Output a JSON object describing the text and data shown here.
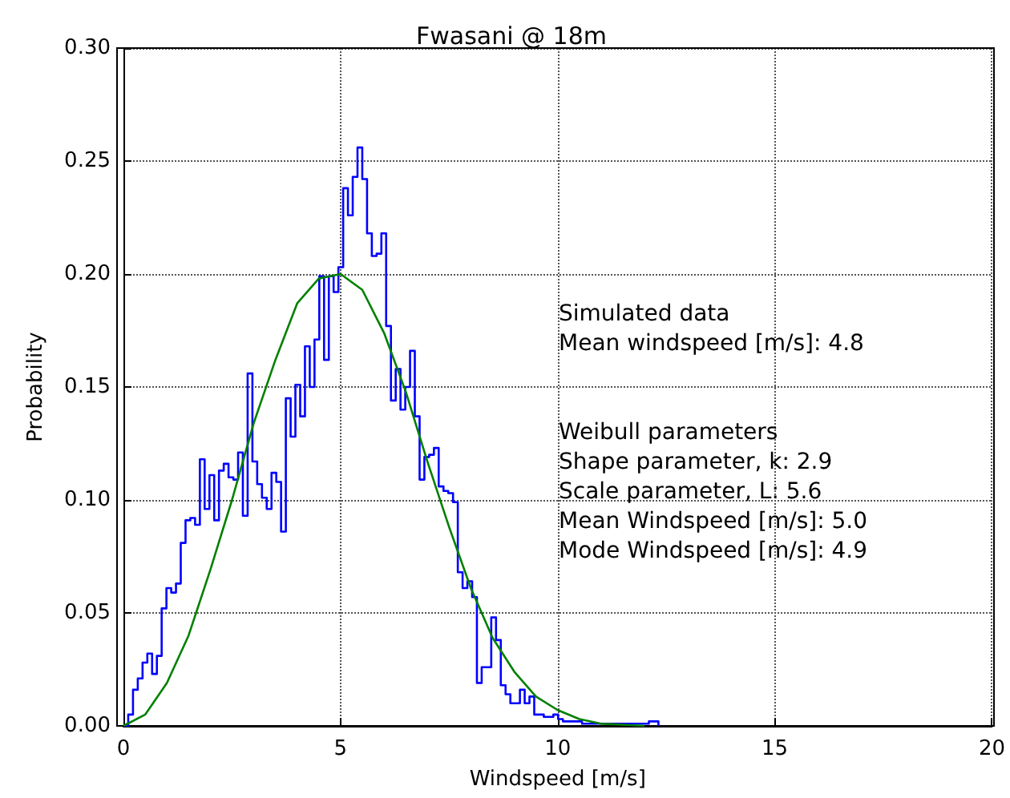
{
  "chart_data": {
    "type": "histogram",
    "title": "Fwasani @ 18m",
    "xlabel": "Windspeed [m/s]",
    "ylabel": "Probability",
    "bins": [
      0,
      0.11,
      0.22,
      0.33,
      0.44,
      0.55,
      0.66,
      0.77,
      0.88,
      0.99,
      1.1,
      1.21,
      1.32,
      1.43,
      1.54,
      1.65,
      1.76,
      1.87,
      1.98,
      2.09,
      2.2,
      2.31,
      2.42,
      2.53,
      2.64,
      2.75,
      2.86,
      2.97,
      3.08,
      3.19,
      3.3,
      3.41,
      3.52,
      3.63,
      3.74,
      3.85,
      3.96,
      4.07,
      4.18,
      4.29,
      4.4,
      4.51,
      4.62,
      4.73,
      4.84,
      4.95,
      5.06,
      5.17,
      5.28,
      5.39,
      5.5,
      5.61,
      5.72,
      5.83,
      5.94,
      6.05,
      6.16,
      6.27,
      6.38,
      6.49,
      6.6,
      6.71,
      6.82,
      6.93,
      7.04,
      7.15,
      7.26,
      7.37,
      7.48,
      7.59,
      7.7,
      7.81,
      7.92,
      8.03,
      8.14,
      8.25,
      8.36,
      8.47,
      8.58,
      8.69,
      8.8,
      8.91,
      9.02,
      9.13,
      9.24,
      9.35,
      9.46,
      9.57,
      9.68,
      9.79,
      9.9,
      10.01,
      10.12,
      10.23,
      10.34,
      10.45,
      10.56,
      10.67,
      10.78,
      10.89,
      11,
      11.11,
      11.22,
      11.33,
      11.44,
      11.55,
      11.66,
      11.77,
      11.88,
      11.99,
      12.1,
      12.21,
      12.32
    ],
    "values": [
      0,
      0.005,
      0.016,
      0.021,
      0.028,
      0.032,
      0.023,
      0.031,
      0.052,
      0.061,
      0.059,
      0.063,
      0.081,
      0.091,
      0.092,
      0.089,
      0.118,
      0.096,
      0.111,
      0.091,
      0.113,
      0.116,
      0.11,
      0.109,
      0.121,
      0.093,
      0.156,
      0.117,
      0.107,
      0.101,
      0.096,
      0.112,
      0.108,
      0.086,
      0.145,
      0.128,
      0.151,
      0.137,
      0.168,
      0.15,
      0.171,
      0.199,
      0.162,
      0.199,
      0.192,
      0.203,
      0.238,
      0.226,
      0.243,
      0.256,
      0.242,
      0.218,
      0.208,
      0.209,
      0.218,
      0.177,
      0.144,
      0.158,
      0.14,
      0.15,
      0.166,
      0.137,
      0.109,
      0.119,
      0.12,
      0.123,
      0.106,
      0.104,
      0.103,
      0.099,
      0.068,
      0.061,
      0.064,
      0.057,
      0.019,
      0.026,
      0.026,
      0.048,
      0.038,
      0.018,
      0.014,
      0.01,
      0.01,
      0.016,
      0.01,
      0.013,
      0.005,
      0.005,
      0.004,
      0.004,
      0.005,
      0.003,
      0.002,
      0.002,
      0.002,
      0.002,
      0.001,
      0.001,
      0.001,
      0.001,
      0.001,
      0.001,
      0.001,
      0.001,
      0.001,
      0.001,
      0.001,
      0.001,
      0.001,
      0.001,
      0.002,
      0.002
    ],
    "color": "#0000ff",
    "series": [
      {
        "type": "line",
        "color": "#008000",
        "x": [
          0,
          0.5,
          1,
          1.5,
          2,
          2.5,
          3,
          3.5,
          4,
          4.5,
          5,
          5.5,
          6,
          6.5,
          7,
          7.5,
          8,
          8.5,
          9,
          9.5,
          10,
          10.5,
          11,
          12
        ],
        "values": [
          0,
          0.005,
          0.019,
          0.04,
          0.069,
          0.1,
          0.134,
          0.162,
          0.187,
          0.198,
          0.2,
          0.193,
          0.174,
          0.148,
          0.117,
          0.088,
          0.061,
          0.039,
          0.024,
          0.013,
          0.007,
          0.003,
          0.001,
          0
        ]
      }
    ],
    "xlim": [
      0,
      20
    ],
    "xticks": [
      0,
      5,
      10,
      15,
      20
    ],
    "ylim": [
      0,
      0.3
    ],
    "yticks": [
      {
        "value": 0,
        "label": "0.00"
      },
      {
        "value": 0.05,
        "label": "0.05"
      },
      {
        "value": 0.1,
        "label": "0.10"
      },
      {
        "value": 0.15,
        "label": "0.15"
      },
      {
        "value": 0.2,
        "label": "0.20"
      },
      {
        "value": 0.25,
        "label": "0.25"
      },
      {
        "value": 0.3,
        "label": "0.30"
      }
    ],
    "grid": true,
    "annotations": [
      "Simulated data\nMean windspeed [m/s]: 4.8",
      "Weibull parameters\nShape parameter, k: 2.9\nScale parameter, L: 5.6\nMean Windspeed [m/s]: 5.0\nMode Windspeed [m/s]: 4.9"
    ]
  }
}
